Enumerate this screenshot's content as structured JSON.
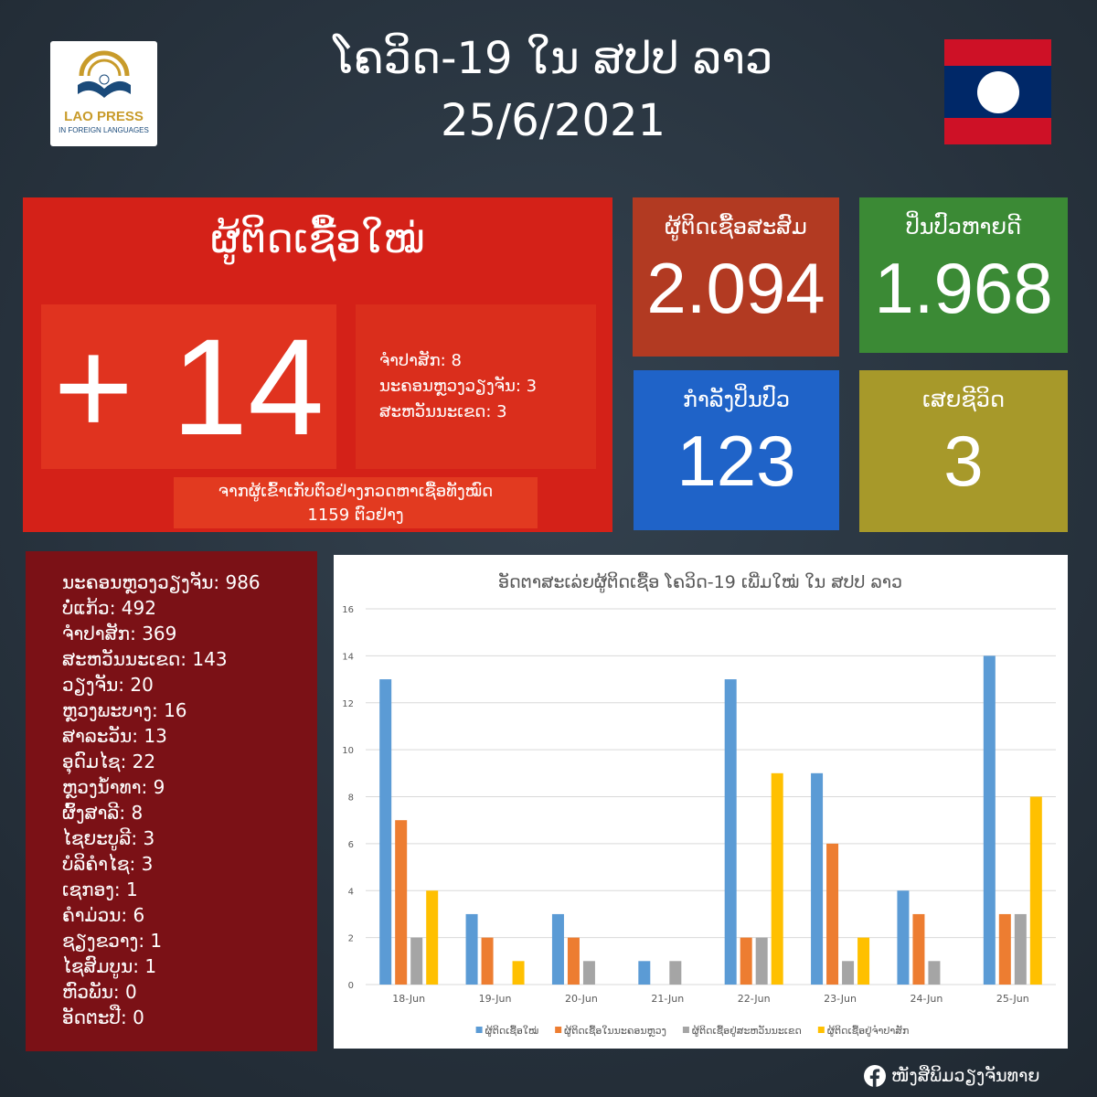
{
  "logo": {
    "name": "LAO PRESS",
    "sub": "IN FOREIGN LANGUAGES"
  },
  "header": {
    "title": "ໂຄວິດ-19 ໃນ ສປປ ລາວ",
    "date": "25/6/2021"
  },
  "new_cases": {
    "label": "ຜູ້ຕິດເຊື້ອໃໝ່",
    "value": "+ 14",
    "breakdown": [
      "ຈຳປາສັກ: 8",
      "ນະຄອນຫຼວງວຽງຈັນ: 3",
      "ສະຫວັນນະເຂດ: 3"
    ],
    "tests_line1": "ຈາກຜູ້ເຂົ້າເກັບຕົວຢ່າງກວດຫາເຊື້ອທັງໝົດ",
    "tests_line2": "1159 ຕົວຢ່າງ"
  },
  "stats": [
    {
      "label": "ຜູ້ຕິດເຊື້ອສະສົມ",
      "value": "2.094",
      "color": "#b23a22"
    },
    {
      "label": "ປິ່ນປົວຫາຍດີ",
      "value": "1.968",
      "color": "#3b8a35"
    },
    {
      "label": "ກຳລັງປິ່ນປົວ",
      "value": "123",
      "color": "#1f63c8"
    },
    {
      "label": "ເສຍຊີວິດ",
      "value": "3",
      "color": "#a7992a"
    }
  ],
  "provinces": [
    "ນະຄອນຫຼວງວຽງຈັນ: 986",
    "ບໍ່ແກ້ວ: 492",
    "ຈຳປາສັກ: 369",
    "ສະຫວັນນະເຂດ: 143",
    "ວຽງຈັນ: 20",
    "ຫຼວງພະບາງ: 16",
    "ສາລະວັນ: 13",
    "ອຸດົມໄຊ: 22",
    "ຫຼວງນ້ຳທາ: 9",
    "ຜົ້ງສາລີ: 8",
    "ໄຊຍະບູລີ: 3",
    "ບໍລິຄຳໄຊ: 3",
    "ເຊກອງ: 1",
    "ຄຳມ່ວນ: 6",
    "ຊຽງຂວາງ: 1",
    "ໄຊສົມບູນ: 1",
    "ຫົວພັນ: 0",
    "ອັດຕະປື: 0"
  ],
  "chart_data": {
    "type": "bar",
    "title": "ອັດຕາສະເລ່ຍຜູ້ຕິດເຊື້ອ ໂຄວິດ-19 ເພີ່ມໃໝ່ ໃນ ສປປ ລາວ",
    "categories": [
      "18-Jun",
      "19-Jun",
      "20-Jun",
      "21-Jun",
      "22-Jun",
      "23-Jun",
      "24-Jun",
      "25-Jun"
    ],
    "ylim": [
      0,
      16
    ],
    "yticks": [
      0,
      2,
      4,
      6,
      8,
      10,
      12,
      14,
      16
    ],
    "grid": true,
    "legend": "bottom",
    "series": [
      {
        "name": "ຜູ້ຕິດເຊື້ອໃໝ່",
        "color": "#5b9bd5",
        "values": [
          13,
          3,
          3,
          1,
          13,
          9,
          4,
          14
        ]
      },
      {
        "name": "ຜູ້ຕິດເຊື້ອໃນນະຄອນຫຼວງ",
        "color": "#ed7d31",
        "values": [
          7,
          2,
          2,
          0,
          2,
          6,
          3,
          3
        ]
      },
      {
        "name": "ຜູ້ຕິດເຊື້ອຢູ່ສະຫວັນນະເຂດ",
        "color": "#a5a5a5",
        "values": [
          2,
          0,
          1,
          1,
          2,
          1,
          1,
          3
        ]
      },
      {
        "name": "ຜູ້ຕິດເຊື້ອຢູ່ຈຳປາສັກ",
        "color": "#ffc000",
        "values": [
          4,
          1,
          0,
          0,
          9,
          2,
          0,
          8
        ]
      }
    ]
  },
  "footer": {
    "text": "ໜັງສືພິມວຽງຈັນທາຍ",
    "icon": "facebook-icon"
  }
}
